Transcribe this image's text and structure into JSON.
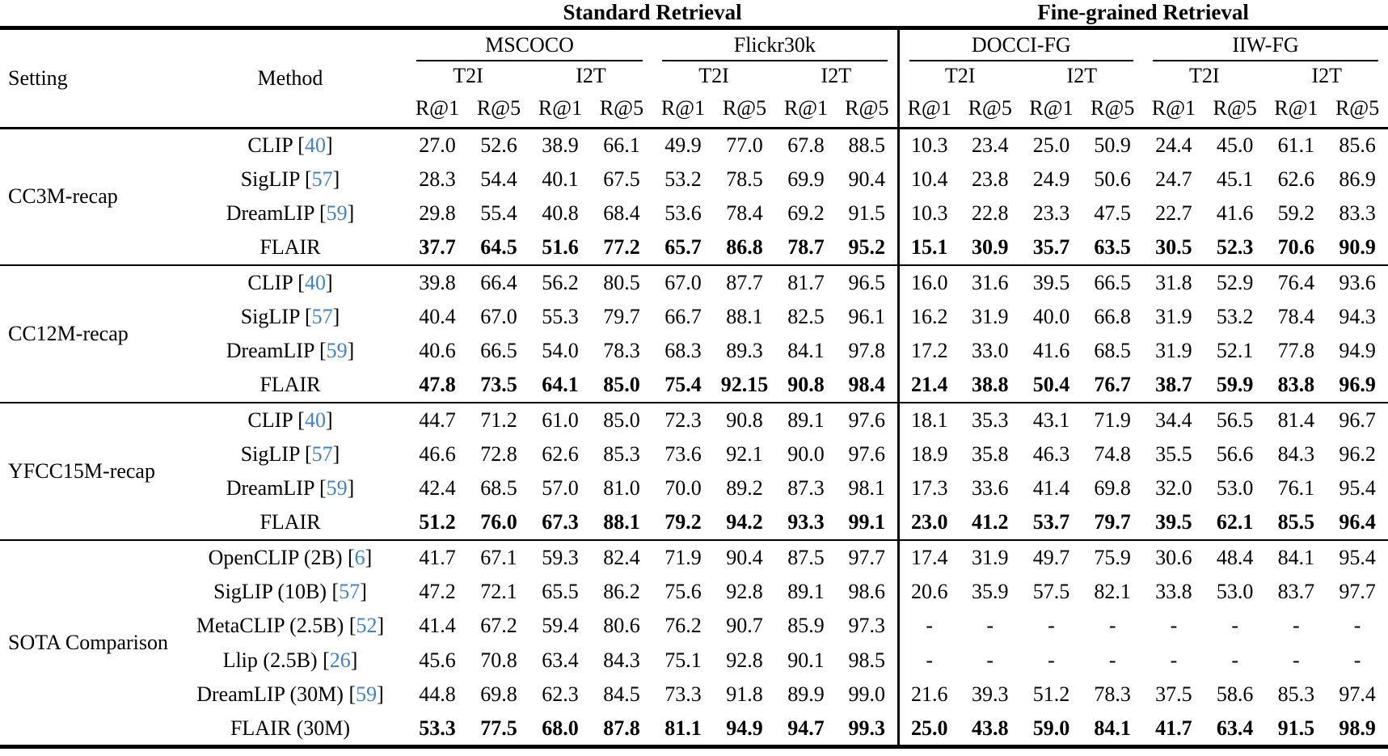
{
  "table": {
    "group_headers": [
      {
        "label": "Standard Retrieval"
      },
      {
        "label": "Fine-grained Retrieval"
      }
    ],
    "header": {
      "setting": "Setting",
      "method": "Method",
      "datasets": [
        "MSCOCO",
        "Flickr30k",
        "DOCCI-FG",
        "IIW-FG"
      ],
      "directions": [
        "T2I",
        "I2T"
      ],
      "metrics": [
        "R@1",
        "R@5"
      ]
    },
    "cite_brackets": [
      "[",
      "]"
    ],
    "citation_color": "#4183C4",
    "blocks": [
      {
        "setting": "CC3M-recap",
        "rows": [
          {
            "method": "CLIP",
            "cite": "40",
            "bold": false,
            "values": [
              "27.0",
              "52.6",
              "38.9",
              "66.1",
              "49.9",
              "77.0",
              "67.8",
              "88.5",
              "10.3",
              "23.4",
              "25.0",
              "50.9",
              "24.4",
              "45.0",
              "61.1",
              "85.6"
            ]
          },
          {
            "method": "SigLIP",
            "cite": "57",
            "bold": false,
            "values": [
              "28.3",
              "54.4",
              "40.1",
              "67.5",
              "53.2",
              "78.5",
              "69.9",
              "90.4",
              "10.4",
              "23.8",
              "24.9",
              "50.6",
              "24.7",
              "45.1",
              "62.6",
              "86.9"
            ]
          },
          {
            "method": "DreamLIP",
            "cite": "59",
            "bold": false,
            "values": [
              "29.8",
              "55.4",
              "40.8",
              "68.4",
              "53.6",
              "78.4",
              "69.2",
              "91.5",
              "10.3",
              "22.8",
              "23.3",
              "47.5",
              "22.7",
              "41.6",
              "59.2",
              "83.3"
            ]
          },
          {
            "method": "FLAIR",
            "cite": null,
            "bold": true,
            "values": [
              "37.7",
              "64.5",
              "51.6",
              "77.2",
              "65.7",
              "86.8",
              "78.7",
              "95.2",
              "15.1",
              "30.9",
              "35.7",
              "63.5",
              "30.5",
              "52.3",
              "70.6",
              "90.9"
            ]
          }
        ]
      },
      {
        "setting": "CC12M-recap",
        "rows": [
          {
            "method": "CLIP",
            "cite": "40",
            "bold": false,
            "values": [
              "39.8",
              "66.4",
              "56.2",
              "80.5",
              "67.0",
              "87.7",
              "81.7",
              "96.5",
              "16.0",
              "31.6",
              "39.5",
              "66.5",
              "31.8",
              "52.9",
              "76.4",
              "93.6"
            ]
          },
          {
            "method": "SigLIP",
            "cite": "57",
            "bold": false,
            "values": [
              "40.4",
              "67.0",
              "55.3",
              "79.7",
              "66.7",
              "88.1",
              "82.5",
              "96.1",
              "16.2",
              "31.9",
              "40.0",
              "66.8",
              "31.9",
              "53.2",
              "78.4",
              "94.3"
            ]
          },
          {
            "method": "DreamLIP",
            "cite": "59",
            "bold": false,
            "values": [
              "40.6",
              "66.5",
              "54.0",
              "78.3",
              "68.3",
              "89.3",
              "84.1",
              "97.8",
              "17.2",
              "33.0",
              "41.6",
              "68.5",
              "31.9",
              "52.1",
              "77.8",
              "94.9"
            ]
          },
          {
            "method": "FLAIR",
            "cite": null,
            "bold": true,
            "values": [
              "47.8",
              "73.5",
              "64.1",
              "85.0",
              "75.4",
              "92.15",
              "90.8",
              "98.4",
              "21.4",
              "38.8",
              "50.4",
              "76.7",
              "38.7",
              "59.9",
              "83.8",
              "96.9"
            ]
          }
        ]
      },
      {
        "setting": "YFCC15M-recap",
        "rows": [
          {
            "method": "CLIP",
            "cite": "40",
            "bold": false,
            "values": [
              "44.7",
              "71.2",
              "61.0",
              "85.0",
              "72.3",
              "90.8",
              "89.1",
              "97.6",
              "18.1",
              "35.3",
              "43.1",
              "71.9",
              "34.4",
              "56.5",
              "81.4",
              "96.7"
            ]
          },
          {
            "method": "SigLIP",
            "cite": "57",
            "bold": false,
            "values": [
              "46.6",
              "72.8",
              "62.6",
              "85.3",
              "73.6",
              "92.1",
              "90.0",
              "97.6",
              "18.9",
              "35.8",
              "46.3",
              "74.8",
              "35.5",
              "56.6",
              "84.3",
              "96.2"
            ]
          },
          {
            "method": "DreamLIP",
            "cite": "59",
            "bold": false,
            "values": [
              "42.4",
              "68.5",
              "57.0",
              "81.0",
              "70.0",
              "89.2",
              "87.3",
              "98.1",
              "17.3",
              "33.6",
              "41.4",
              "69.8",
              "32.0",
              "53.0",
              "76.1",
              "95.4"
            ]
          },
          {
            "method": "FLAIR",
            "cite": null,
            "bold": true,
            "values": [
              "51.2",
              "76.0",
              "67.3",
              "88.1",
              "79.2",
              "94.2",
              "93.3",
              "99.1",
              "23.0",
              "41.2",
              "53.7",
              "79.7",
              "39.5",
              "62.1",
              "85.5",
              "96.4"
            ]
          }
        ]
      },
      {
        "setting": "SOTA Comparison",
        "rows": [
          {
            "method": "OpenCLIP (2B)",
            "cite": "6",
            "bold": false,
            "values": [
              "41.7",
              "67.1",
              "59.3",
              "82.4",
              "71.9",
              "90.4",
              "87.5",
              "97.7",
              "17.4",
              "31.9",
              "49.7",
              "75.9",
              "30.6",
              "48.4",
              "84.1",
              "95.4"
            ]
          },
          {
            "method": "SigLIP (10B)",
            "cite": "57",
            "bold": false,
            "values": [
              "47.2",
              "72.1",
              "65.5",
              "86.2",
              "75.6",
              "92.8",
              "89.1",
              "98.6",
              "20.6",
              "35.9",
              "57.5",
              "82.1",
              "33.8",
              "53.0",
              "83.7",
              "97.7"
            ]
          },
          {
            "method": "MetaCLIP (2.5B)",
            "cite": "52",
            "bold": false,
            "values": [
              "41.4",
              "67.2",
              "59.4",
              "80.6",
              "76.2",
              "90.7",
              "85.9",
              "97.3",
              "-",
              "-",
              "-",
              "-",
              "-",
              "-",
              "-",
              "-"
            ]
          },
          {
            "method": "Llip (2.5B)",
            "cite": "26",
            "bold": false,
            "values": [
              "45.6",
              "70.8",
              "63.4",
              "84.3",
              "75.1",
              "92.8",
              "90.1",
              "98.5",
              "-",
              "-",
              "-",
              "-",
              "-",
              "-",
              "-",
              "-"
            ]
          },
          {
            "method": "DreamLIP (30M)",
            "cite": "59",
            "bold": false,
            "values": [
              "44.8",
              "69.8",
              "62.3",
              "84.5",
              "73.3",
              "91.8",
              "89.9",
              "99.0",
              "21.6",
              "39.3",
              "51.2",
              "78.3",
              "37.5",
              "58.6",
              "85.3",
              "97.4"
            ]
          },
          {
            "method": "FLAIR (30M)",
            "cite": null,
            "bold": true,
            "values": [
              "53.3",
              "77.5",
              "68.0",
              "87.8",
              "81.1",
              "94.9",
              "94.7",
              "99.3",
              "25.0",
              "43.8",
              "59.0",
              "84.1",
              "41.7",
              "63.4",
              "91.5",
              "98.9"
            ]
          }
        ]
      }
    ]
  }
}
